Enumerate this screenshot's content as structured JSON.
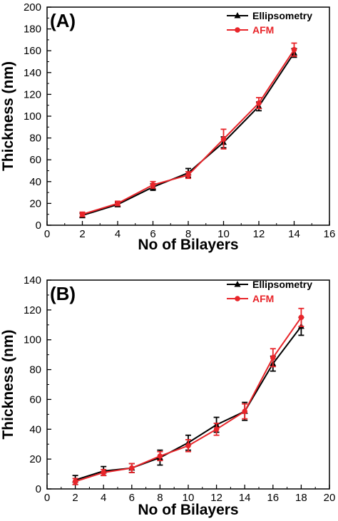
{
  "colors": {
    "ellipsometry": "#000000",
    "afm": "#e8252a",
    "axis": "#000000",
    "background": "#ffffff"
  },
  "chart_data": [
    {
      "type": "line",
      "panel_label": "(A)",
      "xlabel": "No of Bilayers",
      "ylabel": "Thickness (nm)",
      "xlim": [
        0,
        16
      ],
      "ylim": [
        0,
        200
      ],
      "xticks": [
        0,
        2,
        4,
        6,
        8,
        10,
        12,
        14,
        16
      ],
      "yticks": [
        0,
        20,
        40,
        60,
        80,
        100,
        120,
        140,
        160,
        180,
        200
      ],
      "grid": false,
      "legend_position": "top-right",
      "series": [
        {
          "name": "Ellipsometry",
          "color": "#000000",
          "marker": "triangle",
          "x": [
            2,
            4,
            6,
            8,
            10,
            12,
            14
          ],
          "y": [
            9,
            19,
            35,
            48,
            76,
            109,
            158
          ],
          "err": [
            2,
            2,
            3,
            4,
            5,
            4,
            4
          ]
        },
        {
          "name": "AFM",
          "color": "#e8252a",
          "marker": "circle",
          "x": [
            2,
            4,
            6,
            8,
            10,
            12,
            14
          ],
          "y": [
            10,
            20,
            37,
            46,
            79,
            112,
            161
          ],
          "err": [
            2,
            2,
            3,
            3,
            9,
            5,
            6
          ]
        }
      ]
    },
    {
      "type": "line",
      "panel_label": "(B)",
      "xlabel": "No of Bilayers",
      "ylabel": "Thickness (nm)",
      "xlim": [
        0,
        20
      ],
      "ylim": [
        0,
        140
      ],
      "xticks": [
        0,
        2,
        4,
        6,
        8,
        10,
        12,
        14,
        16,
        18,
        20
      ],
      "yticks": [
        0,
        20,
        40,
        60,
        80,
        100,
        120,
        140
      ],
      "grid": false,
      "legend_position": "top-right",
      "series": [
        {
          "name": "Ellipsometry",
          "color": "#000000",
          "marker": "triangle",
          "x": [
            2,
            4,
            6,
            8,
            10,
            12,
            14,
            16,
            18
          ],
          "y": [
            6,
            12,
            14,
            21,
            31,
            43,
            52,
            84,
            109
          ],
          "err": [
            3,
            3,
            3,
            5,
            5,
            5,
            6,
            5,
            6
          ]
        },
        {
          "name": "AFM",
          "color": "#e8252a",
          "marker": "circle",
          "x": [
            2,
            4,
            6,
            8,
            10,
            12,
            14,
            16,
            18
          ],
          "y": [
            5,
            11,
            14,
            22,
            29,
            40,
            52,
            88,
            115
          ],
          "err": [
            2,
            2,
            3,
            3,
            4,
            4,
            5,
            6,
            6
          ]
        }
      ]
    }
  ]
}
